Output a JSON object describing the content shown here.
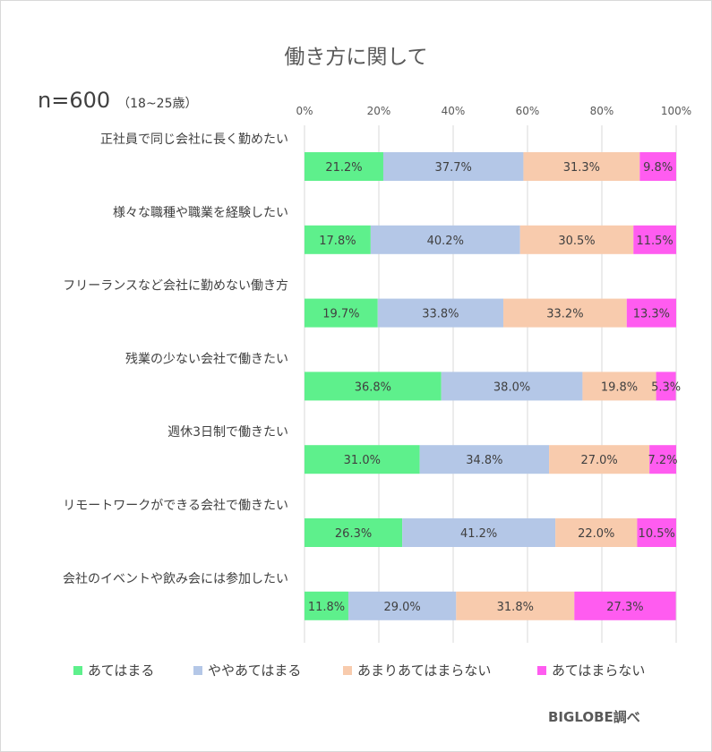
{
  "chart_data": {
    "type": "bar",
    "orientation": "horizontal",
    "stacked": true,
    "title": "働き方に関して",
    "sample_label": "n=600",
    "sample_note": "（18~25歳）",
    "credit": "BIGLOBE調べ",
    "xlim": [
      0,
      100
    ],
    "x_ticks": [
      "0%",
      "20%",
      "40%",
      "60%",
      "80%",
      "100%"
    ],
    "grid": true,
    "legend_position": "bottom",
    "categories": [
      "正社員で同じ会社に長く勤めたい",
      "様々な職種や職業を経験したい",
      "フリーランスなど会社に勤めない働き方",
      "残業の少ない会社で働きたい",
      "週休3日制で働きたい",
      "リモートワークができる会社で働きたい",
      "会社のイベントや飲み会には参加したい"
    ],
    "series": [
      {
        "name": "あてはまる",
        "color": "#5ef08c",
        "values": [
          21.2,
          17.8,
          19.7,
          36.8,
          31.0,
          26.3,
          11.8
        ],
        "labels": [
          "21.2%",
          "17.8%",
          "19.7%",
          "36.8%",
          "31.0%",
          "26.3%",
          "11.8%"
        ]
      },
      {
        "name": "ややあてはまる",
        "color": "#b4c7e7",
        "values": [
          37.7,
          40.2,
          33.8,
          38.0,
          34.8,
          41.2,
          29.0
        ],
        "labels": [
          "37.7%",
          "40.2%",
          "33.8%",
          "38.0%",
          "34.8%",
          "41.2%",
          "29.0%"
        ]
      },
      {
        "name": "あまりあてはまらない",
        "color": "#f8cbad",
        "values": [
          31.3,
          30.5,
          33.2,
          19.8,
          27.0,
          22.0,
          31.8
        ],
        "labels": [
          "31.3%",
          "30.5%",
          "33.2%",
          "19.8%",
          "27.0%",
          "22.0%",
          "31.8%"
        ]
      },
      {
        "name": "あてはまらない",
        "color": "#ff5cf0",
        "values": [
          9.8,
          11.5,
          13.3,
          5.3,
          7.2,
          10.5,
          27.3
        ],
        "labels": [
          "9.8%",
          "11.5%",
          "13.3%",
          "5.3%",
          "7.2%",
          "10.5%",
          "27.3%"
        ]
      }
    ]
  }
}
